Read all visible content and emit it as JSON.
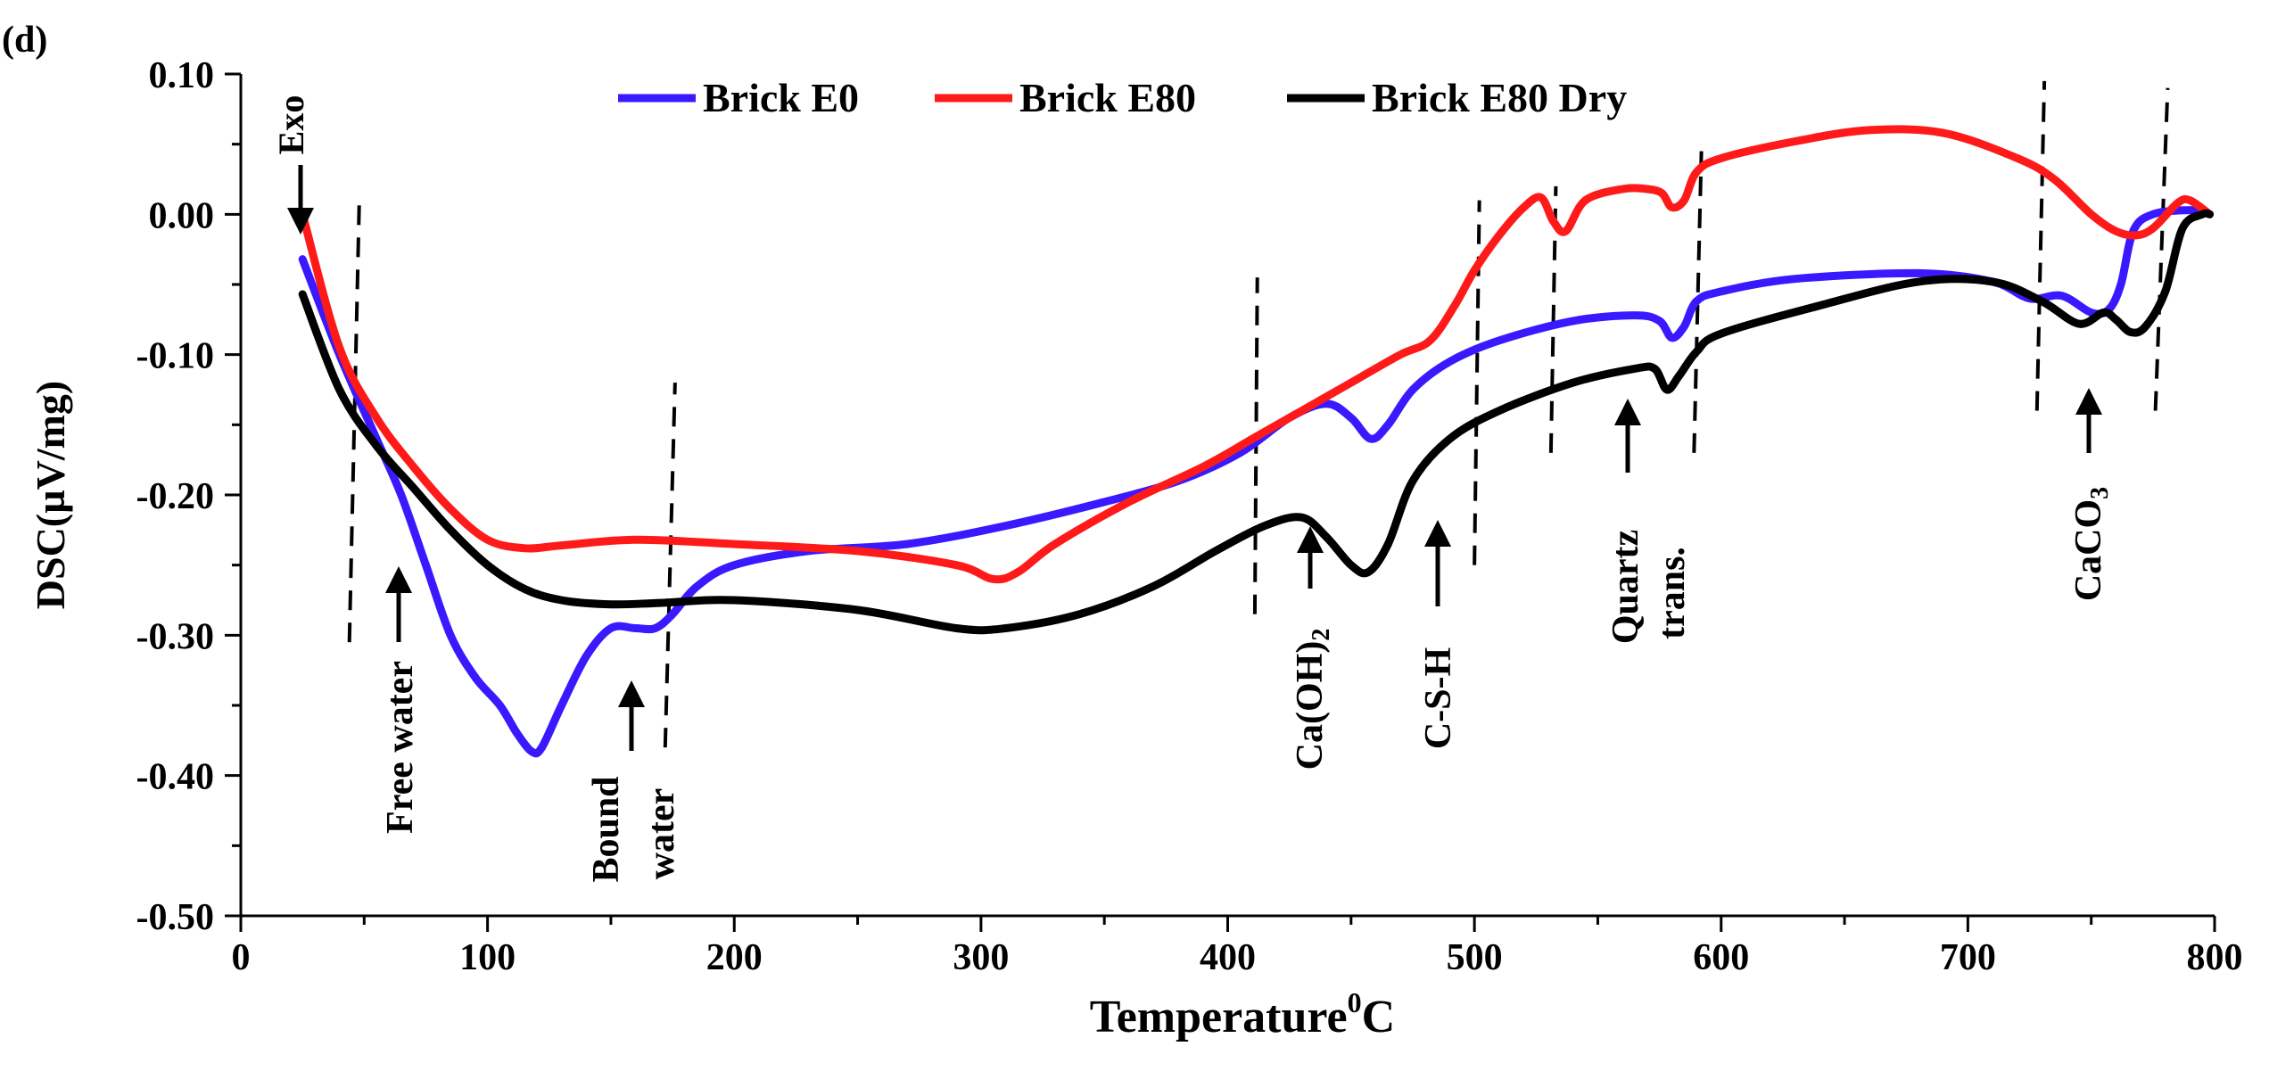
{
  "chart_data": {
    "type": "line",
    "panel_label": "(d)",
    "xlabel": "Temperature",
    "xlabel_sup": "0",
    "xlabel_unit": "C",
    "ylabel": "DSC(µV/mg)",
    "xlim": [
      0,
      800
    ],
    "ylim": [
      -0.5,
      0.1
    ],
    "xticks": [
      0,
      100,
      200,
      300,
      400,
      500,
      600,
      700,
      800
    ],
    "xtick_labels": [
      "0",
      "100",
      "200",
      "300",
      "400",
      "500",
      "600",
      "700",
      "800"
    ],
    "yticks": [
      0.1,
      0.0,
      -0.1,
      -0.2,
      -0.3,
      -0.4,
      -0.5
    ],
    "ytick_labels": [
      "0.10",
      "0.00",
      "-0.10",
      "-0.20",
      "-0.30",
      "-0.40",
      "-0.50"
    ],
    "legend_position": "top-center",
    "series": [
      {
        "name": "Brick E0",
        "color": "#3a19ff",
        "x": [
          25,
          40,
          55,
          65,
          75,
          85,
          95,
          105,
          112,
          118,
          122,
          130,
          140,
          150,
          160,
          168,
          175,
          185,
          200,
          230,
          270,
          310,
          350,
          380,
          405,
          425,
          440,
          450,
          458,
          465,
          475,
          490,
          510,
          540,
          565,
          575,
          580,
          585,
          590,
          600,
          630,
          680,
          710,
          725,
          738,
          750,
          757,
          762,
          767,
          775,
          790,
          798
        ],
        "values": [
          -0.032,
          -0.1,
          -0.16,
          -0.2,
          -0.25,
          -0.3,
          -0.33,
          -0.35,
          -0.37,
          -0.383,
          -0.38,
          -0.35,
          -0.315,
          -0.295,
          -0.295,
          -0.295,
          -0.285,
          -0.265,
          -0.25,
          -0.24,
          -0.235,
          -0.222,
          -0.205,
          -0.19,
          -0.17,
          -0.145,
          -0.135,
          -0.145,
          -0.16,
          -0.15,
          -0.125,
          -0.105,
          -0.09,
          -0.076,
          -0.072,
          -0.076,
          -0.088,
          -0.08,
          -0.062,
          -0.055,
          -0.046,
          -0.042,
          -0.048,
          -0.06,
          -0.058,
          -0.07,
          -0.068,
          -0.05,
          -0.012,
          0.0,
          0.003,
          0.0
        ]
      },
      {
        "name": "Brick E80",
        "color": "#ff1a1a",
        "x": [
          25,
          40,
          55,
          70,
          85,
          100,
          115,
          130,
          160,
          200,
          250,
          290,
          305,
          315,
          330,
          360,
          390,
          410,
          430,
          450,
          470,
          482,
          492,
          500,
          510,
          520,
          527,
          532,
          537,
          545,
          560,
          570,
          576,
          580,
          585,
          590,
          600,
          630,
          660,
          690,
          720,
          735,
          750,
          760,
          768,
          775,
          785,
          790,
          798
        ],
        "values": [
          0.0,
          -0.095,
          -0.145,
          -0.18,
          -0.21,
          -0.232,
          -0.238,
          -0.236,
          -0.232,
          -0.235,
          -0.24,
          -0.25,
          -0.26,
          -0.255,
          -0.235,
          -0.205,
          -0.18,
          -0.16,
          -0.14,
          -0.12,
          -0.1,
          -0.09,
          -0.065,
          -0.04,
          -0.015,
          0.005,
          0.012,
          -0.005,
          -0.012,
          0.01,
          0.018,
          0.018,
          0.015,
          0.005,
          0.01,
          0.03,
          0.04,
          0.052,
          0.06,
          0.058,
          0.04,
          0.025,
          0.0,
          -0.012,
          -0.015,
          -0.01,
          0.008,
          0.01,
          0.0
        ]
      },
      {
        "name": "Brick E80 Dry",
        "color": "#000000",
        "x": [
          25,
          40,
          55,
          70,
          85,
          100,
          115,
          130,
          150,
          170,
          200,
          250,
          290,
          310,
          340,
          370,
          395,
          415,
          430,
          440,
          450,
          457,
          465,
          475,
          490,
          510,
          540,
          565,
          573,
          578,
          583,
          590,
          600,
          640,
          680,
          710,
          730,
          745,
          755,
          760,
          766,
          772,
          780,
          787,
          795,
          798
        ],
        "values": [
          -0.057,
          -0.125,
          -0.165,
          -0.195,
          -0.225,
          -0.25,
          -0.267,
          -0.275,
          -0.278,
          -0.277,
          -0.275,
          -0.282,
          -0.295,
          -0.295,
          -0.285,
          -0.265,
          -0.24,
          -0.222,
          -0.216,
          -0.23,
          -0.25,
          -0.255,
          -0.235,
          -0.19,
          -0.16,
          -0.14,
          -0.12,
          -0.11,
          -0.11,
          -0.125,
          -0.115,
          -0.098,
          -0.085,
          -0.065,
          -0.048,
          -0.048,
          -0.062,
          -0.078,
          -0.07,
          -0.075,
          -0.084,
          -0.08,
          -0.055,
          -0.01,
          0.0,
          0.0
        ]
      }
    ],
    "dashed_lines": [
      {
        "x": [
          44,
          48
        ],
        "y": [
          -0.305,
          0.008
        ]
      },
      {
        "x": [
          172,
          176
        ],
        "y": [
          -0.38,
          -0.12
        ]
      },
      {
        "x": [
          411,
          412
        ],
        "y": [
          -0.285,
          -0.045
        ]
      },
      {
        "x": [
          500,
          502
        ],
        "y": [
          -0.25,
          0.01
        ]
      },
      {
        "x": [
          531,
          533
        ],
        "y": [
          -0.17,
          0.02
        ]
      },
      {
        "x": [
          589,
          592
        ],
        "y": [
          -0.17,
          0.045
        ]
      },
      {
        "x": [
          728,
          731
        ],
        "y": [
          -0.14,
          0.095
        ]
      },
      {
        "x": [
          776,
          781
        ],
        "y": [
          -0.14,
          0.09
        ]
      }
    ],
    "annotations": [
      {
        "name": "exo",
        "text": "Exo"
      },
      {
        "name": "free-water",
        "text": "Free water"
      },
      {
        "name": "bound",
        "text": "Bound"
      },
      {
        "name": "water",
        "text": "water"
      },
      {
        "name": "caoh2",
        "text": "Ca(OH)",
        "subscript": "2"
      },
      {
        "name": "csh",
        "text": "C-S-H"
      },
      {
        "name": "quartz",
        "text": "Quartz"
      },
      {
        "name": "trans",
        "text": "trans."
      },
      {
        "name": "caco3",
        "text": "CaCO",
        "subscript": "3"
      }
    ]
  }
}
